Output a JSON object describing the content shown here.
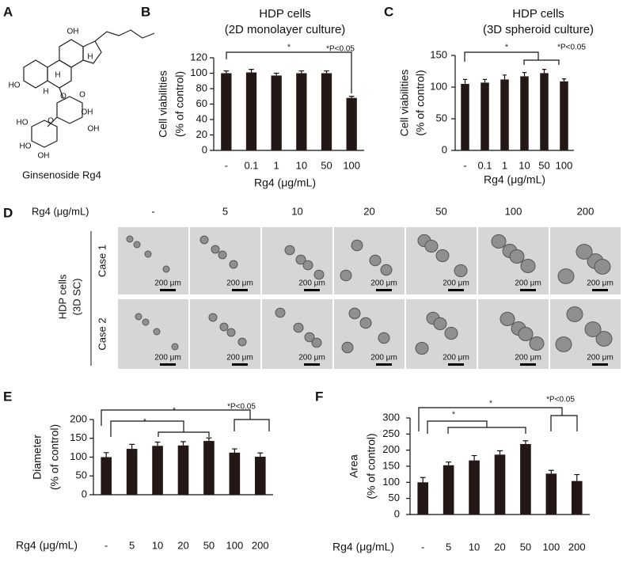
{
  "panel_labels": [
    "A",
    "B",
    "C",
    "D",
    "E",
    "F"
  ],
  "panel_a": {
    "caption": "Ginsenoside Rg4",
    "atoms": [
      "OH",
      "H",
      "HO",
      "H",
      "H",
      "O",
      "O",
      "OH",
      "O",
      "OH",
      "HO",
      "HO",
      "OH"
    ]
  },
  "panel_d": {
    "header": "Rg4 (μg/mL)",
    "columns": [
      "-",
      "5",
      "10",
      "20",
      "50",
      "100",
      "200"
    ],
    "rows": [
      "Case 1",
      "Case 2"
    ],
    "group_label": [
      "HDP cells",
      "(3D SC)"
    ],
    "scale_bar": "200 μm"
  },
  "chart_data": [
    {
      "type": "bar",
      "title": "HDP cells",
      "subtitle": "(2D monolayer culture)",
      "ylabel": [
        "Cell viabilities",
        "(% of control)"
      ],
      "xlabel": "Rg4 (μg/mL)",
      "categories": [
        "-",
        "0.1",
        "1",
        "10",
        "50",
        "100"
      ],
      "values": [
        100,
        101,
        97,
        100,
        100,
        68
      ],
      "errors": [
        3,
        4,
        3,
        3,
        3,
        2
      ],
      "color": "#231815",
      "ylim": [
        0,
        120
      ],
      "yticks": [
        0,
        20,
        40,
        60,
        80,
        100,
        120
      ],
      "annotations": [
        "*",
        "*P<0.05"
      ]
    },
    {
      "type": "bar",
      "title": "HDP cells",
      "subtitle": "(3D spheroid culture)",
      "ylabel": [
        "Cell viabilities",
        "(% of control)"
      ],
      "xlabel": "Rg4 (μg/mL)",
      "categories": [
        "-",
        "0.1",
        "1",
        "10",
        "50",
        "100"
      ],
      "values": [
        105,
        107,
        112,
        117,
        122,
        109
      ],
      "errors": [
        7,
        5,
        7,
        6,
        6,
        4
      ],
      "color": "#231815",
      "ylim": [
        0,
        150
      ],
      "yticks": [
        0,
        50,
        100,
        150
      ],
      "annotations": [
        "*",
        "*P<0.05"
      ]
    },
    {
      "type": "bar",
      "ylabel": [
        "Diameter",
        "(% of control)"
      ],
      "xlabel": "Rg4 (μg/mL)",
      "categories": [
        "-",
        "5",
        "10",
        "20",
        "50",
        "100",
        "200"
      ],
      "values": [
        100,
        122,
        130,
        131,
        143,
        112,
        101
      ],
      "errors": [
        12,
        12,
        10,
        10,
        8,
        10,
        10
      ],
      "color": "#231815",
      "ylim": [
        0,
        200
      ],
      "yticks": [
        0,
        50,
        100,
        150,
        200
      ],
      "annotations": [
        "*",
        "*",
        "*P<0.05"
      ]
    },
    {
      "type": "bar",
      "ylabel": [
        "Area",
        "(% of control)"
      ],
      "xlabel": "Rg4 (μg/mL)",
      "categories": [
        "-",
        "5",
        "10",
        "20",
        "50",
        "100",
        "200"
      ],
      "values": [
        100,
        153,
        168,
        186,
        219,
        127,
        104
      ],
      "errors": [
        15,
        10,
        15,
        12,
        10,
        10,
        20
      ],
      "color": "#231815",
      "ylim": [
        0,
        300
      ],
      "yticks": [
        0,
        50,
        100,
        150,
        200,
        250,
        300
      ],
      "annotations": [
        "*",
        "*",
        "*P<0.05"
      ]
    }
  ]
}
